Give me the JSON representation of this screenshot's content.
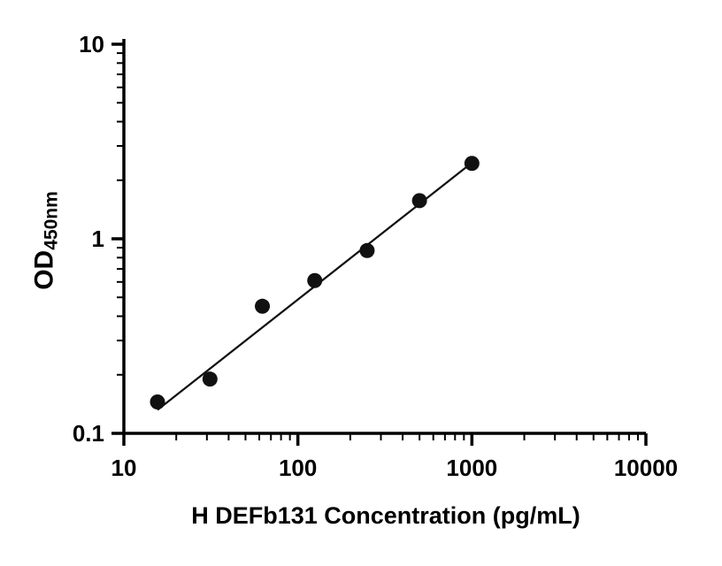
{
  "chart_data": {
    "type": "scatter",
    "title": "",
    "xlabel": "H DEFb131 Concentration (pg/mL)",
    "ylabel_main": "OD",
    "ylabel_sub": "450nm",
    "x_scale": "log",
    "y_scale": "log",
    "xlim": [
      10,
      10000
    ],
    "ylim": [
      0.1,
      10
    ],
    "x_ticks": [
      10,
      100,
      1000,
      10000
    ],
    "x_tick_labels": [
      "10",
      "100",
      "1000",
      "10000"
    ],
    "y_ticks": [
      0.1,
      1,
      10
    ],
    "y_tick_labels": [
      "0.1",
      "1",
      "10"
    ],
    "grid": false,
    "legend": false,
    "points": [
      {
        "x": 15.6,
        "y": 0.145
      },
      {
        "x": 31.25,
        "y": 0.19
      },
      {
        "x": 62.5,
        "y": 0.45
      },
      {
        "x": 125,
        "y": 0.61
      },
      {
        "x": 250,
        "y": 0.87
      },
      {
        "x": 500,
        "y": 1.57
      },
      {
        "x": 1000,
        "y": 2.44
      }
    ],
    "fit_line": {
      "x1": 15.6,
      "y1": 0.132,
      "x2": 1000,
      "y2": 2.46
    },
    "marker_color": "#111111",
    "line_color": "#111111",
    "axis_color": "#000000"
  }
}
